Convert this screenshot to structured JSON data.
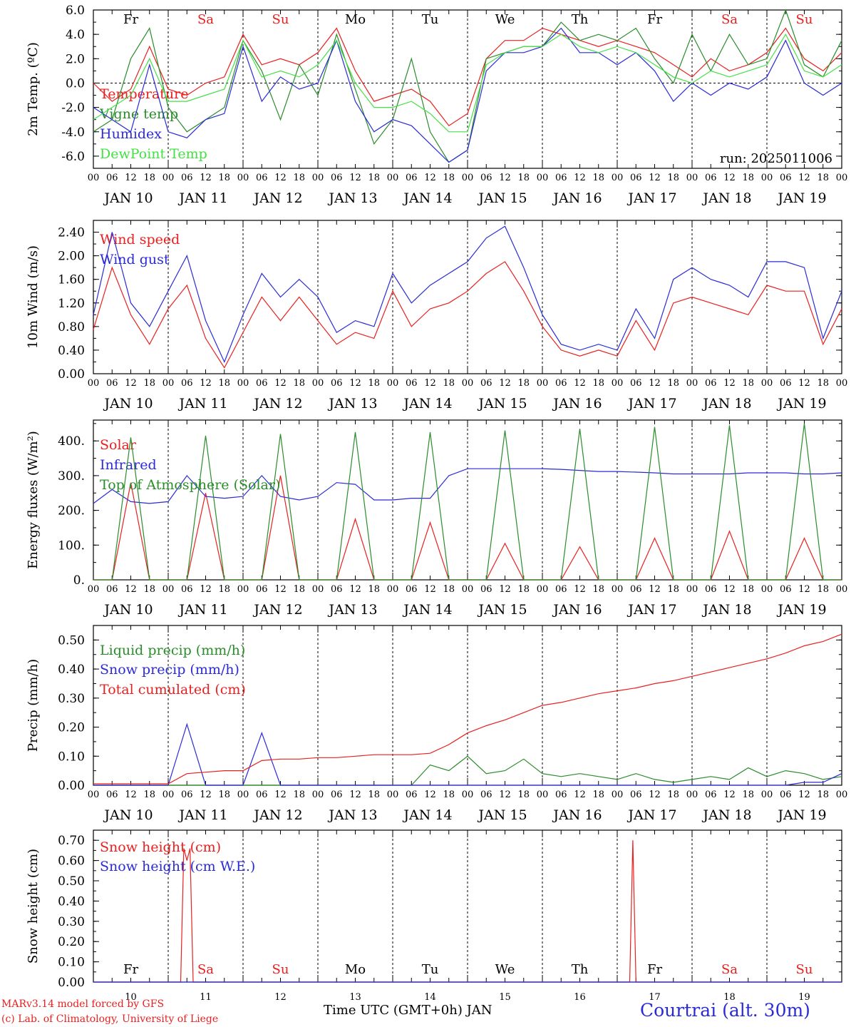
{
  "colors": {
    "red": "#e8201f",
    "green": "#2a8c2a",
    "blue": "#2b2bd6",
    "lightgreen": "#44e044",
    "black": "#000000"
  },
  "time_axis": {
    "days": [
      "JAN 10",
      "JAN 11",
      "JAN 12",
      "JAN 13",
      "JAN 14",
      "JAN 15",
      "JAN 16",
      "JAN 17",
      "JAN 18",
      "JAN 19"
    ],
    "hour_ticks": [
      "00",
      "06",
      "12",
      "18"
    ],
    "weekdays": [
      "Fr",
      "Sa",
      "Su",
      "Mo",
      "Tu",
      "We",
      "Th",
      "Fr",
      "Sa",
      "Su"
    ],
    "weekday_colors": [
      "black",
      "red",
      "red",
      "black",
      "black",
      "black",
      "black",
      "black",
      "red",
      "red"
    ],
    "bottom_days": [
      "10",
      "11",
      "12",
      "13",
      "14",
      "15",
      "16",
      "17",
      "18",
      "19"
    ]
  },
  "chart_data": [
    {
      "type": "line",
      "ylabel": "2m Temp. (ºC)",
      "ylim": [
        -7,
        6
      ],
      "yticks": [
        "-6.0",
        "-4.0",
        "-2.0",
        "0.0",
        "2.0",
        "4.0",
        "6.0"
      ],
      "run_label": "run: 2025011006",
      "x_hours": [
        0,
        6,
        12,
        18,
        24,
        30,
        36,
        42,
        48,
        54,
        60,
        66,
        72,
        78,
        84,
        90,
        96,
        102,
        108,
        114,
        120,
        126,
        132,
        138,
        144,
        150,
        156,
        162,
        168,
        174,
        180,
        186,
        192,
        198,
        204,
        210,
        216,
        222,
        228,
        234,
        240
      ],
      "series": [
        {
          "name": "Temperature",
          "color": "red",
          "values": [
            0,
            -1.5,
            -0.5,
            3,
            -0.5,
            -1,
            0,
            0.5,
            4,
            1.5,
            2,
            1.5,
            2.5,
            4.5,
            1,
            -1.5,
            -1,
            -0.5,
            -1.5,
            -3.5,
            -2.5,
            2,
            3.5,
            3.5,
            4.5,
            4,
            3.5,
            3,
            3.5,
            3,
            2.5,
            1.5,
            0.5,
            2,
            1,
            1.5,
            2.5,
            4.5,
            2,
            1,
            2.5
          ]
        },
        {
          "name": "Vigne temp",
          "color": "green",
          "values": [
            -4,
            -3,
            2,
            4.5,
            -2,
            -4,
            -3,
            -2,
            3.5,
            1,
            -3,
            1.5,
            -1,
            4,
            -0.5,
            -5,
            -3,
            2,
            -4,
            -6.5,
            -5.5,
            2,
            2.5,
            3,
            3,
            5,
            3.5,
            4,
            3.5,
            4.5,
            2,
            0,
            4,
            1,
            4,
            1.5,
            2,
            6,
            1.5,
            0.5,
            3.5
          ]
        },
        {
          "name": "Humidex",
          "color": "blue",
          "values": [
            -2,
            -3,
            -4,
            1.5,
            -4,
            -4.5,
            -3,
            -2.5,
            3,
            -1.5,
            0.5,
            -0.5,
            0,
            3.5,
            -1.5,
            -4,
            -3,
            -3.5,
            -5,
            -6.5,
            -5.5,
            1,
            2.5,
            2.5,
            3,
            4.5,
            2.5,
            2.5,
            1.5,
            2.5,
            1,
            -1.5,
            0,
            -1,
            0,
            -0.5,
            0.5,
            3.5,
            0,
            -1,
            0
          ]
        },
        {
          "name": "DewPoint Temp",
          "color": "lightgreen",
          "values": [
            -3,
            -2,
            -1,
            2,
            -1.5,
            -1.5,
            -1,
            -0.5,
            3.5,
            0.5,
            1,
            0.5,
            1.5,
            3.5,
            0,
            -2,
            -2,
            -1.5,
            -2.5,
            -4,
            -4,
            1.5,
            2.5,
            3,
            3,
            4,
            3,
            2.5,
            3,
            2.5,
            1.5,
            0.5,
            0,
            1,
            0.5,
            1,
            1.5,
            4,
            1,
            0.5,
            1.5
          ]
        }
      ]
    },
    {
      "type": "line",
      "ylabel": "10m Wind (m/s)",
      "ylim": [
        0,
        2.6
      ],
      "yticks": [
        "0.00",
        "0.40",
        "0.80",
        "1.20",
        "1.60",
        "2.00",
        "2.40"
      ],
      "x_hours": [
        0,
        6,
        12,
        18,
        24,
        30,
        36,
        42,
        48,
        54,
        60,
        66,
        72,
        78,
        84,
        90,
        96,
        102,
        108,
        114,
        120,
        126,
        132,
        138,
        144,
        150,
        156,
        162,
        168,
        174,
        180,
        186,
        192,
        198,
        204,
        210,
        216,
        222,
        228,
        234,
        240
      ],
      "series": [
        {
          "name": "Wind speed",
          "color": "red",
          "values": [
            0.75,
            1.8,
            1,
            0.5,
            1.1,
            1.5,
            0.6,
            0.1,
            0.7,
            1.3,
            0.9,
            1.3,
            0.9,
            0.5,
            0.7,
            0.6,
            1.4,
            0.8,
            1.1,
            1.2,
            1.4,
            1.7,
            1.9,
            1.4,
            0.8,
            0.4,
            0.3,
            0.4,
            0.3,
            0.9,
            0.4,
            1.2,
            1.3,
            1.2,
            1.1,
            1,
            1.5,
            1.4,
            1.4,
            0.5,
            1.1
          ]
        },
        {
          "name": "Wind gust",
          "color": "blue",
          "values": [
            1,
            2.4,
            1.2,
            0.8,
            1.4,
            2,
            0.9,
            0.2,
            1,
            1.7,
            1.3,
            1.6,
            1.3,
            0.7,
            0.9,
            0.8,
            1.7,
            1.2,
            1.5,
            1.7,
            1.9,
            2.3,
            2.5,
            1.8,
            1.0,
            0.5,
            0.4,
            0.5,
            0.4,
            1.1,
            0.6,
            1.6,
            1.8,
            1.6,
            1.5,
            1.3,
            1.9,
            1.9,
            1.8,
            0.6,
            1.4
          ]
        }
      ]
    },
    {
      "type": "line",
      "ylabel": "Energy fluxes (W/m²)",
      "ylim": [
        0,
        460
      ],
      "yticks": [
        "0.",
        "100.",
        "200.",
        "300.",
        "400."
      ],
      "x_hours": [
        0,
        6,
        12,
        18,
        24,
        30,
        36,
        42,
        48,
        54,
        60,
        66,
        72,
        78,
        84,
        90,
        96,
        102,
        108,
        114,
        120,
        126,
        132,
        138,
        144,
        150,
        156,
        162,
        168,
        174,
        180,
        186,
        192,
        198,
        204,
        210,
        216,
        222,
        228,
        234,
        240
      ],
      "series": [
        {
          "name": "Solar",
          "color": "red",
          "values": [
            0,
            0,
            280,
            0,
            0,
            0,
            250,
            0,
            0,
            0,
            300,
            0,
            0,
            0,
            175,
            0,
            0,
            0,
            165,
            0,
            0,
            0,
            105,
            0,
            0,
            0,
            95,
            0,
            0,
            0,
            120,
            0,
            0,
            0,
            140,
            0,
            0,
            0,
            120,
            0,
            0
          ]
        },
        {
          "name": "Infrared",
          "color": "blue",
          "values": [
            220,
            260,
            225,
            220,
            225,
            300,
            240,
            235,
            240,
            300,
            240,
            230,
            240,
            280,
            275,
            230,
            230,
            235,
            235,
            300,
            320,
            320,
            320,
            320,
            320,
            318,
            315,
            312,
            312,
            310,
            308,
            305,
            305,
            305,
            305,
            308,
            308,
            308,
            305,
            305,
            308
          ]
        },
        {
          "name": "Top of Atmosphere (Solar)",
          "color": "green",
          "values": [
            0,
            0,
            410,
            0,
            0,
            0,
            415,
            0,
            0,
            0,
            420,
            0,
            0,
            0,
            425,
            0,
            0,
            0,
            425,
            0,
            0,
            0,
            430,
            0,
            0,
            0,
            435,
            0,
            0,
            0,
            440,
            0,
            0,
            0,
            445,
            0,
            0,
            0,
            450,
            0,
            0
          ]
        }
      ]
    },
    {
      "type": "line",
      "ylabel": "Precip (mm/h)",
      "ylim": [
        0,
        0.55
      ],
      "yticks": [
        "0.00",
        "0.10",
        "0.20",
        "0.30",
        "0.40",
        "0.50"
      ],
      "x_hours": [
        0,
        6,
        12,
        18,
        24,
        30,
        36,
        42,
        48,
        54,
        60,
        66,
        72,
        78,
        84,
        90,
        96,
        102,
        108,
        114,
        120,
        126,
        132,
        138,
        144,
        150,
        156,
        162,
        168,
        174,
        180,
        186,
        192,
        198,
        204,
        210,
        216,
        222,
        228,
        234,
        240
      ],
      "series": [
        {
          "name": "Liquid precip (mm/h)",
          "color": "green",
          "values": [
            0,
            0,
            0,
            0,
            0,
            0,
            0,
            0,
            0,
            0,
            0,
            0,
            0,
            0,
            0,
            0,
            0,
            0,
            0.07,
            0.05,
            0.1,
            0.04,
            0.05,
            0.09,
            0.04,
            0.03,
            0.04,
            0.03,
            0.02,
            0.04,
            0.02,
            0.01,
            0.02,
            0.03,
            0.02,
            0.06,
            0.03,
            0.05,
            0.04,
            0.02,
            0.03
          ]
        },
        {
          "name": "Snow precip (mm/h)",
          "color": "blue",
          "values": [
            0,
            0,
            0,
            0,
            0,
            0.21,
            0,
            0,
            0,
            0.18,
            0,
            0,
            0,
            0,
            0,
            0,
            0,
            0,
            0,
            0,
            0,
            0,
            0,
            0,
            0,
            0,
            0,
            0,
            0,
            0,
            0,
            0,
            0,
            0,
            0,
            0,
            0,
            0,
            0.01,
            0.01,
            0.04
          ]
        },
        {
          "name": "Total cumulated (cm)",
          "color": "red",
          "values": [
            0.005,
            0.005,
            0.005,
            0.005,
            0.005,
            0.04,
            0.045,
            0.05,
            0.05,
            0.085,
            0.09,
            0.09,
            0.095,
            0.095,
            0.1,
            0.105,
            0.105,
            0.105,
            0.11,
            0.14,
            0.18,
            0.205,
            0.225,
            0.25,
            0.275,
            0.285,
            0.3,
            0.315,
            0.325,
            0.335,
            0.35,
            0.36,
            0.375,
            0.39,
            0.405,
            0.42,
            0.435,
            0.455,
            0.48,
            0.495,
            0.52
          ]
        }
      ]
    },
    {
      "type": "line",
      "ylabel": "Snow height (cm)",
      "ylim": [
        0,
        0.75
      ],
      "yticks": [
        "0.00",
        "0.10",
        "0.20",
        "0.30",
        "0.40",
        "0.50",
        "0.60",
        "0.70"
      ],
      "series": [
        {
          "name": "Snow height (cm)",
          "color": "red",
          "points": [
            [
              0,
              0
            ],
            [
              28,
              0
            ],
            [
              29,
              0.66
            ],
            [
              30,
              0.6
            ],
            [
              31,
              0.66
            ],
            [
              32,
              0
            ],
            [
              172,
              0
            ],
            [
              173,
              0.7
            ],
            [
              174,
              0
            ],
            [
              240,
              0
            ]
          ]
        },
        {
          "name": "Snow height (cm W.E.)",
          "color": "blue",
          "points": [
            [
              0,
              0
            ],
            [
              240,
              0
            ]
          ]
        }
      ]
    }
  ],
  "footer": {
    "x_title": "Time UTC (GMT+0h) JAN",
    "model_line": "MARv3.14 model forced by GFS",
    "credit_line": "(c) Lab. of Climatology, University of Liege",
    "station": "Courtrai (alt. 30m)"
  }
}
